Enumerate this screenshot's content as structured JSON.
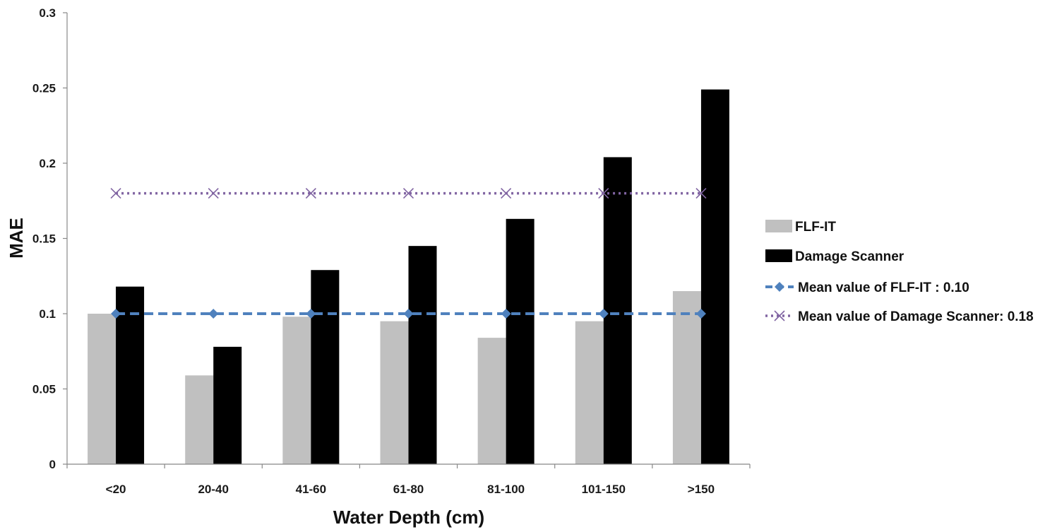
{
  "chart_data": {
    "type": "bar",
    "title": "",
    "xlabel": "Water Depth (cm)",
    "ylabel": "MAE",
    "categories": [
      "<20",
      "20-40",
      "41-60",
      "61-80",
      "81-100",
      "101-150",
      ">150"
    ],
    "ylim": [
      0,
      0.3
    ],
    "yticks": [
      0,
      0.05,
      0.1,
      0.15,
      0.2,
      0.25,
      0.3
    ],
    "ytick_labels": [
      "0",
      "0.05",
      "0.1",
      "0.15",
      "0.2",
      "0.25",
      "0.3"
    ],
    "grid": false,
    "legend_position": "right",
    "series": [
      {
        "name": "FLF-IT",
        "kind": "bar",
        "color": "#c0c0c0",
        "values": [
          0.1,
          0.059,
          0.098,
          0.095,
          0.084,
          0.095,
          0.115
        ]
      },
      {
        "name": "Damage Scanner",
        "kind": "bar",
        "color": "#000000",
        "values": [
          0.118,
          0.078,
          0.129,
          0.145,
          0.163,
          0.204,
          0.249
        ]
      },
      {
        "name": "Mean value of FLF-IT : 0.10",
        "kind": "line",
        "style": "dashed",
        "marker": "diamond",
        "color": "#4f81bd",
        "values": [
          0.1,
          0.1,
          0.1,
          0.1,
          0.1,
          0.1,
          0.1
        ]
      },
      {
        "name": "Mean value of Damage Scanner: 0.18",
        "kind": "line",
        "style": "dotted",
        "marker": "x",
        "color": "#8064a2",
        "values": [
          0.18,
          0.18,
          0.18,
          0.18,
          0.18,
          0.18,
          0.18
        ]
      }
    ]
  }
}
